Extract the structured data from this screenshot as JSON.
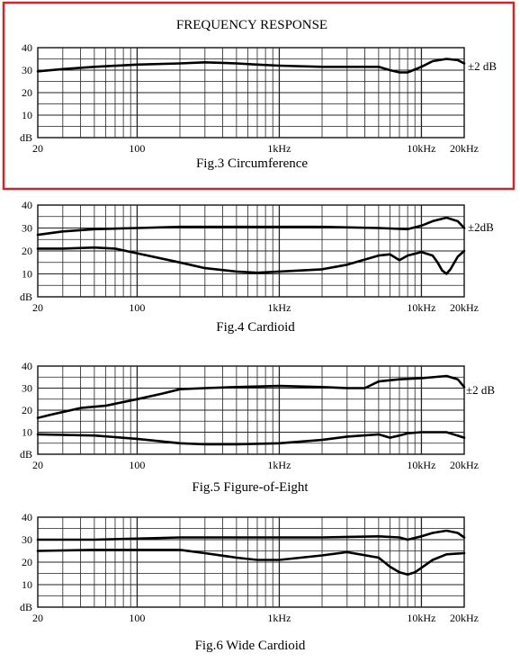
{
  "page_title": "FREQUENCY RESPONSE",
  "highlight_color": "#d0262b",
  "chart_data": [
    {
      "type": "line",
      "caption": "Fig.3 Circumference",
      "x_scale": "log",
      "xlim": [
        20,
        20000
      ],
      "ylim": [
        0,
        40
      ],
      "x_ticks": [
        20,
        100,
        1000,
        10000,
        20000
      ],
      "x_tick_labels": [
        "20",
        "100",
        "1kHz",
        "10kHz",
        "20kHz"
      ],
      "y_ticks": [
        40,
        30,
        20,
        10
      ],
      "y_tick_labels": [
        "40",
        "30",
        "20",
        "10"
      ],
      "y_unit_label": "dB",
      "tolerance_label": "±2 dB",
      "tolerance_db": 2,
      "grid": true,
      "highlighted": true,
      "series": [
        {
          "x": [
            20,
            30,
            50,
            100,
            200,
            300,
            500,
            700,
            1000,
            2000,
            3000,
            5000,
            6000,
            7000,
            8000,
            10000,
            12000,
            15000,
            18000,
            20000
          ],
          "y": [
            29.5,
            30.5,
            31.5,
            32.5,
            33,
            33.5,
            33,
            32.5,
            32,
            31.5,
            31.5,
            31.5,
            30,
            29,
            29,
            31.5,
            34,
            35,
            34.5,
            33
          ]
        }
      ]
    },
    {
      "type": "line",
      "caption": "Fig.4 Cardioid",
      "x_scale": "log",
      "xlim": [
        20,
        20000
      ],
      "ylim": [
        0,
        40
      ],
      "x_ticks": [
        20,
        100,
        1000,
        10000,
        20000
      ],
      "x_tick_labels": [
        "20",
        "100",
        "1kHz",
        "10kHz",
        "20kHz"
      ],
      "y_ticks": [
        40,
        30,
        20,
        10
      ],
      "y_tick_labels": [
        "40",
        "30",
        "20",
        "10"
      ],
      "y_unit_label": "dB",
      "tolerance_label": "±2dB",
      "tolerance_db": 2,
      "grid": true,
      "series": [
        {
          "x": [
            20,
            30,
            50,
            100,
            200,
            500,
            1000,
            2000,
            5000,
            8000,
            10000,
            12000,
            15000,
            18000,
            20000
          ],
          "y": [
            27,
            28.5,
            29.5,
            30,
            30.5,
            30.5,
            30.5,
            30.5,
            30,
            29.5,
            31,
            33,
            34.5,
            33,
            30
          ]
        },
        {
          "x": [
            20,
            30,
            50,
            70,
            100,
            200,
            300,
            500,
            700,
            1000,
            2000,
            3000,
            5000,
            6000,
            7000,
            8000,
            10000,
            12000,
            13000,
            14000,
            15000,
            16000,
            18000,
            20000
          ],
          "y": [
            21,
            21,
            21.5,
            21,
            19,
            15,
            12.5,
            11,
            10.5,
            11,
            12,
            14,
            18,
            18.5,
            16,
            18,
            19.5,
            18,
            15,
            11.5,
            10,
            12,
            17.5,
            20
          ]
        }
      ]
    },
    {
      "type": "line",
      "caption": "Fig.5 Figure-of-Eight",
      "x_scale": "log",
      "xlim": [
        20,
        20000
      ],
      "ylim": [
        0,
        40
      ],
      "x_ticks": [
        20,
        100,
        1000,
        10000,
        20000
      ],
      "x_tick_labels": [
        "20",
        "100",
        "1kHz",
        "10kHz",
        "20kHz"
      ],
      "y_ticks": [
        40,
        30,
        20,
        10
      ],
      "y_tick_labels": [
        "40",
        "30",
        "20",
        "10"
      ],
      "y_unit_label": "dB",
      "tolerance_label": "±2 dB",
      "tolerance_db": 2,
      "grid": true,
      "series": [
        {
          "x": [
            20,
            25,
            40,
            60,
            100,
            150,
            200,
            300,
            500,
            1000,
            2000,
            3000,
            4000,
            5000,
            7000,
            10000,
            15000,
            18000,
            20000
          ],
          "y": [
            16.5,
            18,
            21,
            22,
            25,
            27.5,
            29.5,
            30,
            30.5,
            31,
            30.5,
            30,
            30,
            33,
            34,
            34.5,
            35.5,
            34,
            30.5
          ]
        },
        {
          "x": [
            20,
            50,
            100,
            200,
            300,
            500,
            1000,
            2000,
            3000,
            5000,
            6000,
            7000,
            8000,
            10000,
            15000,
            20000
          ],
          "y": [
            9,
            8.5,
            7,
            5,
            4.5,
            4.5,
            5,
            6.5,
            8,
            9,
            7.5,
            8.5,
            9.5,
            10,
            10,
            7.5
          ]
        }
      ]
    },
    {
      "type": "line",
      "caption": "Fig.6 Wide Cardioid",
      "x_scale": "log",
      "xlim": [
        20,
        20000
      ],
      "ylim": [
        0,
        40
      ],
      "x_ticks": [
        20,
        100,
        1000,
        10000,
        20000
      ],
      "x_tick_labels": [
        "20",
        "100",
        "1kHz",
        "10kHz",
        "20kHz"
      ],
      "y_ticks": [
        40,
        30,
        20,
        10
      ],
      "y_tick_labels": [
        "40",
        "30",
        "20",
        "10"
      ],
      "y_unit_label": "dB",
      "grid": true,
      "series": [
        {
          "x": [
            20,
            50,
            100,
            200,
            500,
            1000,
            2000,
            5000,
            7000,
            8000,
            10000,
            12000,
            15000,
            18000,
            20000
          ],
          "y": [
            30,
            30,
            30.5,
            31,
            31,
            31,
            31,
            31.5,
            31,
            30,
            31.5,
            33,
            34,
            33,
            31
          ]
        },
        {
          "x": [
            20,
            50,
            100,
            200,
            300,
            500,
            700,
            1000,
            2000,
            3000,
            5000,
            6000,
            7000,
            8000,
            9000,
            10000,
            12000,
            15000,
            20000
          ],
          "y": [
            25,
            25.5,
            25.5,
            25.5,
            24,
            22,
            21,
            21,
            23,
            24.5,
            22,
            18,
            15.5,
            14.5,
            15.5,
            17.5,
            21,
            23.5,
            24
          ]
        }
      ]
    }
  ]
}
